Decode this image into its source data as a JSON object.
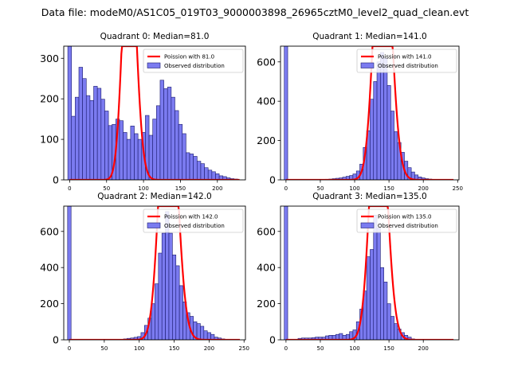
{
  "suptitle": "Data file: modeM0/AS1C05_019T03_9000003898_26965cztM0_level2_quad_clean.evt",
  "colors": {
    "bar_fill": "#7b7bf0",
    "bar_edge": "#1a1a6e",
    "poisson": "#ff0000"
  },
  "legend": {
    "observed": "Observed distribution"
  },
  "chart_data": [
    {
      "type": "bar",
      "title": "Quadrant 0: Median=81.0",
      "median": 81.0,
      "poisson_label": "Poission with 81.0",
      "xlim": [
        -8,
        238
      ],
      "ylim": [
        0,
        330
      ],
      "xticks": [
        0,
        50,
        100,
        150,
        200
      ],
      "yticks": [
        0,
        100,
        200,
        300
      ],
      "bin_width": 5,
      "bin_start": -2.5,
      "counts": [
        330,
        157,
        204,
        278,
        250,
        208,
        196,
        231,
        226,
        199,
        170,
        134,
        137,
        150,
        146,
        117,
        100,
        133,
        114,
        100,
        117,
        159,
        110,
        150,
        183,
        246,
        225,
        229,
        204,
        171,
        137,
        114,
        67,
        64,
        58,
        46,
        40,
        30,
        24,
        20,
        15,
        10,
        8,
        5,
        3,
        2
      ],
      "poisson_scale": 14300
    },
    {
      "type": "bar",
      "title": "Quadrant 1: Median=141.0",
      "median": 141.0,
      "poisson_label": "Poission with 141.0",
      "xlim": [
        -8,
        252
      ],
      "ylim": [
        0,
        680
      ],
      "xticks": [
        0,
        50,
        100,
        150,
        200,
        250
      ],
      "yticks": [
        0,
        200,
        400,
        600
      ],
      "bin_width": 5,
      "bin_start": -2.5,
      "counts": [
        680,
        0,
        0,
        0,
        0,
        0,
        0,
        0,
        0,
        0,
        0,
        0,
        3,
        4,
        6,
        8,
        10,
        14,
        18,
        22,
        30,
        45,
        80,
        165,
        250,
        410,
        500,
        600,
        648,
        620,
        480,
        350,
        245,
        190,
        140,
        95,
        62,
        40,
        25,
        15,
        10,
        6,
        4,
        2,
        1,
        1,
        0,
        0,
        0
      ],
      "poisson_scale": 44000
    },
    {
      "type": "bar",
      "title": "Quadrant 2: Median=142.0",
      "median": 142.0,
      "poisson_label": "Poission with 142.0",
      "xlim": [
        -8,
        252
      ],
      "ylim": [
        0,
        740
      ],
      "xticks": [
        0,
        50,
        100,
        150,
        200,
        250
      ],
      "yticks": [
        0,
        200,
        400,
        600
      ],
      "bin_width": 5,
      "bin_start": -2.5,
      "counts": [
        740,
        0,
        0,
        0,
        0,
        0,
        0,
        0,
        0,
        0,
        0,
        0,
        0,
        0,
        2,
        3,
        5,
        8,
        10,
        14,
        18,
        40,
        80,
        120,
        200,
        310,
        480,
        590,
        710,
        590,
        470,
        410,
        300,
        210,
        150,
        130,
        100,
        90,
        75,
        50,
        40,
        30,
        15,
        10,
        5,
        2,
        1,
        0,
        0
      ],
      "poisson_scale": 48000
    },
    {
      "type": "bar",
      "title": "Quadrant 3: Median=135.0",
      "median": 135.0,
      "poisson_label": "Poission with 135.0",
      "xlim": [
        -8,
        252
      ],
      "ylim": [
        0,
        740
      ],
      "xticks": [
        0,
        50,
        100,
        150,
        200
      ],
      "yticks": [
        0,
        200,
        400,
        600
      ],
      "bin_width": 5,
      "bin_start": -2.5,
      "counts": [
        740,
        0,
        0,
        0,
        8,
        10,
        10,
        10,
        12,
        15,
        15,
        15,
        22,
        25,
        25,
        30,
        35,
        25,
        30,
        45,
        55,
        100,
        170,
        270,
        460,
        500,
        690,
        620,
        400,
        320,
        200,
        130,
        90,
        60,
        40,
        25,
        15,
        5,
        3,
        2,
        1,
        0,
        0,
        0,
        0,
        0,
        0
      ],
      "poisson_scale": 44000
    }
  ]
}
